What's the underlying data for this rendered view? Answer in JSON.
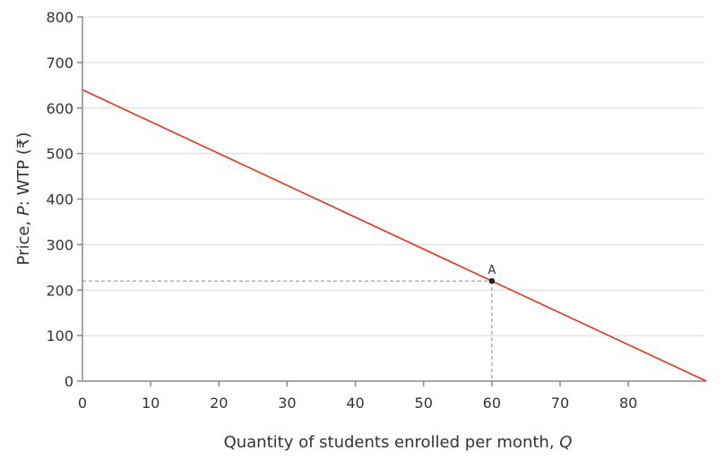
{
  "chart_data": {
    "type": "line",
    "title": "",
    "xlabel": "Quantity of students enrolled per month, Q",
    "xlabel_parts": [
      "Quantity of students enrolled per month, ",
      "Q"
    ],
    "ylabel": "Price, P: WTP (₹)",
    "ylabel_parts": [
      "Price, ",
      "P",
      ": WTP (₹)"
    ],
    "xlim": [
      0,
      91.43
    ],
    "ylim": [
      0,
      800
    ],
    "xticks": [
      0,
      10,
      20,
      30,
      40,
      50,
      60,
      70,
      80
    ],
    "yticks": [
      0,
      100,
      200,
      300,
      400,
      500,
      600,
      700,
      800
    ],
    "grid": "horizontal",
    "series": [
      {
        "x": [
          0,
          91.43
        ],
        "y": [
          640,
          0
        ],
        "color": "#e2311d"
      }
    ],
    "points": [
      {
        "label": "A",
        "x": 60,
        "y": 220,
        "color": "#222222",
        "dashed_guides": true
      }
    ],
    "colors": {
      "grid": "#d9d9d9",
      "axis": "#888888",
      "guide": "#7d8c96"
    }
  }
}
